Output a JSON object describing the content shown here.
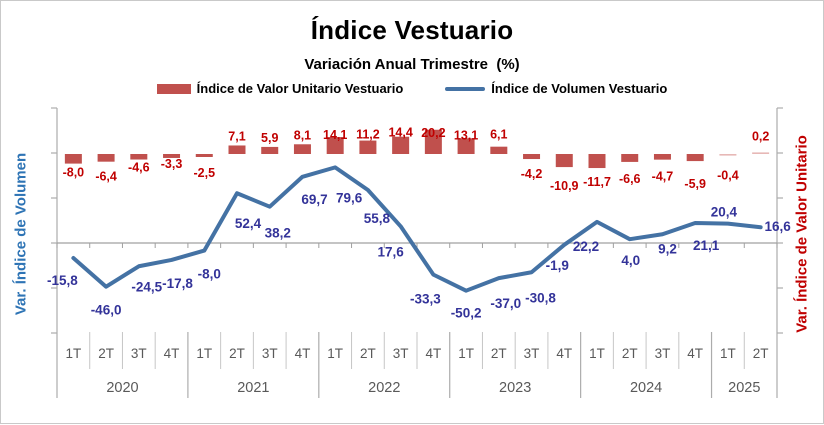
{
  "title": "Índice Vestuario",
  "subtitle": "Variación Anual Trimestre  (%)",
  "legend": [
    {
      "label": "Índice de Valor Unitario Vestuario",
      "color": "#C0504D",
      "marker": "bar-swatch"
    },
    {
      "label": "Índice de Volumen Vestuario",
      "color": "#4472A4",
      "marker": "line-swatch"
    }
  ],
  "axes": {
    "left_label": "Var. Índice de Volumen",
    "left_color": "#2E74B5",
    "right_label": "Var. Índice de Valor Unitario",
    "right_color": "#C00000"
  },
  "chart_data": {
    "type": "bar+line",
    "year_groups": [
      {
        "year": "2020",
        "quarters": [
          "1T",
          "2T",
          "3T",
          "4T"
        ]
      },
      {
        "year": "2021",
        "quarters": [
          "1T",
          "2T",
          "3T",
          "4T"
        ]
      },
      {
        "year": "2022",
        "quarters": [
          "1T",
          "2T",
          "3T",
          "4T"
        ]
      },
      {
        "year": "2023",
        "quarters": [
          "1T",
          "2T",
          "3T",
          "4T"
        ]
      },
      {
        "year": "2024",
        "quarters": [
          "1T",
          "2T",
          "3T",
          "4T"
        ]
      },
      {
        "year": "2025",
        "quarters": [
          "1T",
          "2T"
        ]
      }
    ],
    "series": [
      {
        "name": "Índice de Valor Unitario Vestuario",
        "type": "bar",
        "axis": "right",
        "color": "#C0504D",
        "label_color": "#C00000",
        "values": [
          -8.0,
          -6.4,
          -4.6,
          -3.3,
          -2.5,
          7.1,
          5.9,
          8.1,
          14.1,
          11.2,
          14.4,
          20.2,
          13.1,
          6.1,
          -4.2,
          -10.9,
          -11.7,
          -6.6,
          -4.7,
          -5.9,
          -0.4,
          0.2
        ],
        "labels": [
          "-8,0",
          "-6,4",
          "-4,6",
          "-3,3",
          "-2,5",
          "7,1",
          "5,9",
          "8,1",
          "14,1",
          "11,2",
          "14,4",
          "20,2",
          "13,1",
          "6,1",
          "-4,2",
          "-10,9",
          "-11,7",
          "-6,6",
          "-4,7",
          "-5,9",
          "-0,4",
          "0,2"
        ]
      },
      {
        "name": "Índice de Volumen Vestuario",
        "type": "line",
        "axis": "left",
        "color": "#4472A4",
        "label_color": "#333399",
        "values": [
          -15.8,
          -46.0,
          -24.5,
          -17.8,
          -8.0,
          52.4,
          38.2,
          69.7,
          79.6,
          55.8,
          17.6,
          -33.3,
          -50.2,
          -37.0,
          -30.8,
          -1.9,
          22.2,
          4.0,
          9.2,
          21.1,
          20.4,
          16.6
        ],
        "labels": [
          "-15,8",
          "-46,0",
          "-24,5",
          "-17,8",
          "-8,0",
          "52,4",
          "38,2",
          "69,7",
          "79,6",
          "55,8",
          "17,6",
          "-33,3",
          "-50,2",
          "-37,0",
          "-30,8",
          "-1,9",
          "22,2",
          "4,0",
          "9,2",
          "21,1",
          "20,4",
          "16,6"
        ]
      }
    ]
  }
}
